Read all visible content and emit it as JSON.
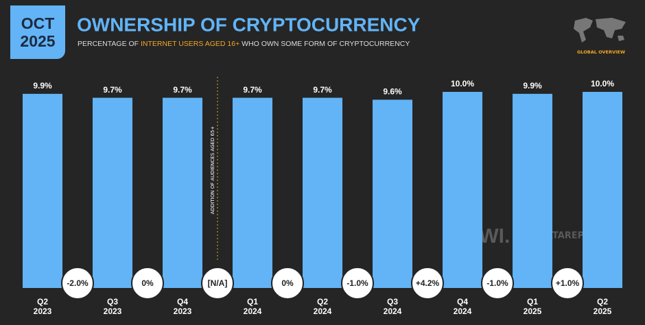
{
  "badge": "OCT 2025",
  "chart_data": {
    "type": "bar",
    "title": "OWNERSHIP OF CRYPTOCURRENCY",
    "subtitle_parts": [
      "PERCENTAGE OF ",
      "INTERNET USERS AGED 16+",
      " WHO OWN SOME FORM OF CRYPTOCURRENCY"
    ],
    "categories": [
      "Q2 2023",
      "Q3 2023",
      "Q4 2023",
      "Q1 2024",
      "Q2 2024",
      "Q3 2024",
      "Q4 2024",
      "Q1 2025",
      "Q2 2025"
    ],
    "values": [
      9.9,
      9.7,
      9.7,
      9.7,
      9.7,
      9.6,
      10.0,
      9.9,
      10.0
    ],
    "value_labels": [
      "9.9%",
      "9.7%",
      "9.7%",
      "9.7%",
      "9.7%",
      "9.6%",
      "10.0%",
      "9.9%",
      "10.0%"
    ],
    "changes": [
      "-2.0%",
      "0%",
      "[N/A]",
      "0%",
      "-1.0%",
      "+4.2%",
      "-1.0%",
      "+1.0%"
    ],
    "annotation": "ADDITION OF AUDIENCES AGED 65+",
    "color": "#62b4f6",
    "ylim": [
      0,
      10
    ]
  },
  "logo_label": "GLOBAL OVERVIEW",
  "watermarks": [
    "GWI.",
    "DATAREPORTAL"
  ]
}
